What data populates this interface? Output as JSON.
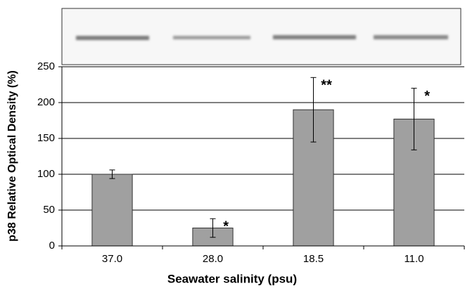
{
  "chart_data": {
    "type": "bar",
    "xlabel": "Seawater salinity (psu)",
    "ylabel": "p38 Relative Optical Density (%)",
    "categories": [
      "37.0",
      "28.0",
      "18.5",
      "11.0"
    ],
    "values": [
      100,
      25,
      190,
      177
    ],
    "errors": [
      6,
      13,
      45,
      43
    ],
    "significance": [
      null,
      "*",
      "**",
      "*"
    ],
    "color": "#a0a0a0",
    "ylim": [
      0,
      250
    ],
    "yticks": [
      0,
      50,
      100,
      150,
      200,
      250
    ],
    "grid": true
  }
}
